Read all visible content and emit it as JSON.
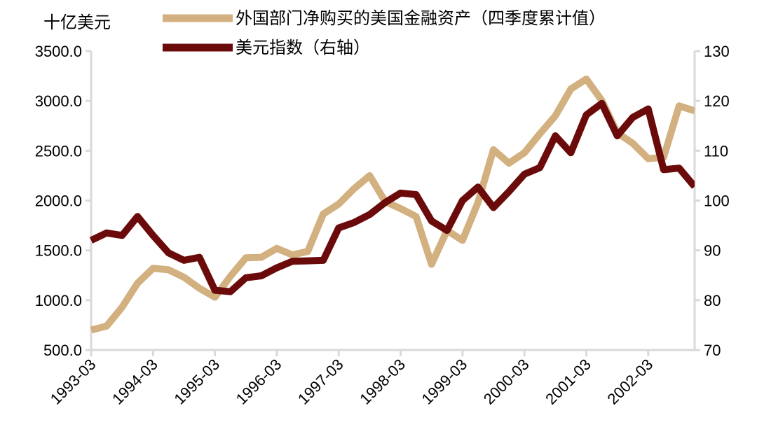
{
  "chart_data": {
    "type": "line",
    "y_left_unit": "十亿美元",
    "y_left_ticks": [
      "500.0",
      "1000.0",
      "1500.0",
      "2000.0",
      "2500.0",
      "3000.0",
      "3500.0"
    ],
    "y_left_lim": [
      500,
      3500
    ],
    "y_right_ticks": [
      "70",
      "80",
      "90",
      "100",
      "110",
      "120",
      "130"
    ],
    "y_right_lim": [
      70,
      130
    ],
    "x_tick_labels": [
      "1993-03",
      "1994-03",
      "1995-03",
      "1996-03",
      "1997-03",
      "1998-03",
      "1999-03",
      "2000-03",
      "2001-03",
      "2002-03"
    ],
    "x_count": 40,
    "legend_position": "top",
    "series": [
      {
        "name": "外国部门净购买的美国金融资产（四季度累计值）",
        "axis": "left",
        "color": "#D2B07F",
        "values": [
          700,
          740,
          930,
          1170,
          1320,
          1305,
          1230,
          1120,
          1030,
          1240,
          1425,
          1430,
          1520,
          1455,
          1490,
          1865,
          1965,
          2120,
          2250,
          1990,
          1920,
          1840,
          1360,
          1700,
          1600,
          1980,
          2510,
          2375,
          2480,
          2670,
          2850,
          3120,
          3220,
          3005,
          2680,
          2575,
          2420,
          2435,
          2950,
          2900
        ]
      },
      {
        "name": "美元指数（右轴）",
        "axis": "right",
        "color": "#6B0A0A",
        "values": [
          92,
          93.5,
          93,
          96.8,
          93,
          89.5,
          88,
          88.6,
          82,
          81.7,
          84.5,
          84.9,
          86.5,
          87.8,
          87.9,
          88,
          94.5,
          95.6,
          97.2,
          99.6,
          101.5,
          101.2,
          95.9,
          94,
          100,
          102.7,
          98.6,
          101.8,
          105.3,
          106.6,
          113,
          109.6,
          117.2,
          119.5,
          113,
          116.7,
          118.4,
          106.2,
          106.5,
          102.8
        ]
      }
    ]
  }
}
